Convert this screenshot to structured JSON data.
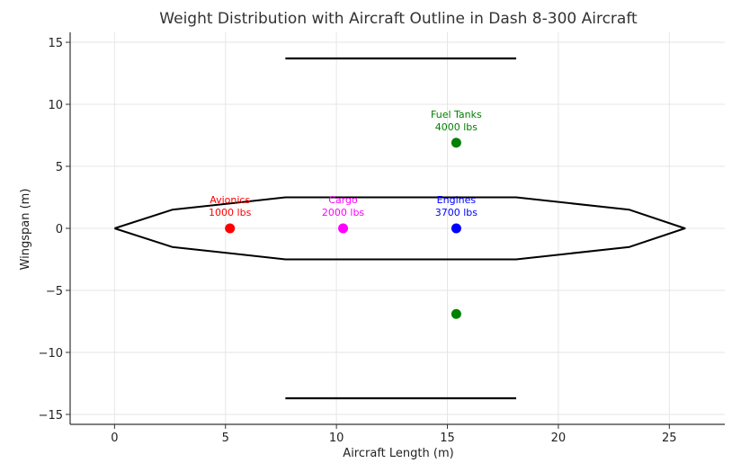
{
  "chart_data": {
    "type": "scatter",
    "title": "Weight Distribution with Aircraft Outline in Dash 8-300 Aircraft",
    "xlabel": "Aircraft Length (m)",
    "ylabel": "Wingspan (m)",
    "xlim": [
      -2,
      27.5
    ],
    "ylim": [
      -15.8,
      15.8
    ],
    "xticks": [
      0,
      5,
      10,
      15,
      20,
      25
    ],
    "xtick_labels": [
      "0",
      "5",
      "10",
      "15",
      "20",
      "25"
    ],
    "yticks": [
      15,
      10,
      5,
      0,
      -5,
      -10,
      -15
    ],
    "ytick_labels": [
      "15",
      "10",
      "5",
      "0",
      "−5",
      "−10",
      "−15"
    ],
    "grid": true,
    "outline": {
      "color": "#000000",
      "points": [
        [
          0,
          0
        ],
        [
          2.6,
          1.5
        ],
        [
          7.7,
          2.5
        ],
        [
          18.1,
          2.5
        ],
        [
          23.2,
          1.5
        ],
        [
          25.7,
          0
        ],
        [
          23.2,
          -1.5
        ],
        [
          18.1,
          -2.5
        ],
        [
          7.7,
          -2.5
        ],
        [
          2.6,
          -1.5
        ],
        [
          0,
          0
        ]
      ]
    },
    "tail_lines": [
      {
        "x": [
          7.7,
          18.1
        ],
        "y": [
          13.7,
          13.7
        ],
        "color": "#000000"
      },
      {
        "x": [
          7.7,
          18.1
        ],
        "y": [
          -13.7,
          -13.7
        ],
        "color": "#000000"
      }
    ],
    "points": [
      {
        "x": 5.2,
        "y": 0,
        "color": "#ff0000",
        "label_lines": [
          "Avionics",
          "1000 lbs"
        ]
      },
      {
        "x": 10.3,
        "y": 0,
        "color": "#ff00ff",
        "label_lines": [
          "Cargo",
          "2000 lbs"
        ]
      },
      {
        "x": 15.4,
        "y": 0,
        "color": "#0000ff",
        "label_lines": [
          "Engines",
          "3700 lbs"
        ]
      },
      {
        "x": 15.4,
        "y": 6.9,
        "color": "#008000",
        "label_lines": [
          "Fuel Tanks",
          "4000 lbs"
        ]
      },
      {
        "x": 15.4,
        "y": -6.9,
        "color": "#008000",
        "label_lines": []
      }
    ]
  }
}
